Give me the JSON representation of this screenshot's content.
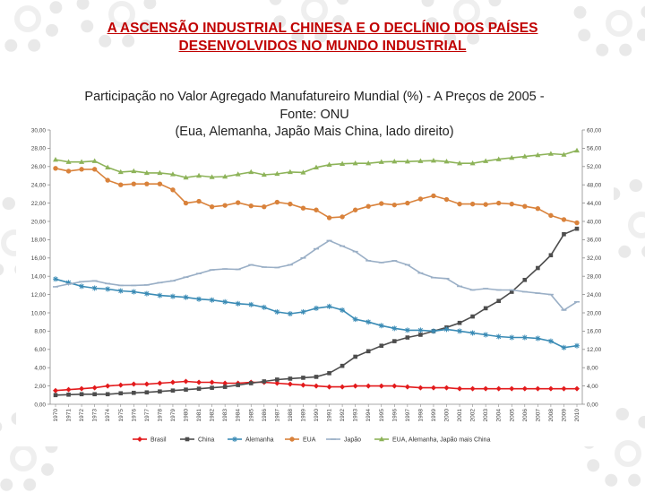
{
  "slide": {
    "title_line1": "A ASCENSÃO INDUSTRIAL CHINESA E O DECLÍNIO  DOS PAÍSES",
    "title_line2": "DESENVOLVIDOS NO MUNDO INDUSTRIAL "
  },
  "chart_data": {
    "type": "line",
    "title_lines": [
      "Participação no Valor Agregado Manufatureiro Mundial (%) -  A Preços de 2005 -",
      "Fonte: ONU",
      "(Eua, Alemanha, Japão Mais China, lado direito)"
    ],
    "x": [
      "1970",
      "1971",
      "1972",
      "1973",
      "1974",
      "1975",
      "1976",
      "1977",
      "1978",
      "1979",
      "1980",
      "1981",
      "1982",
      "1983",
      "1984",
      "1985",
      "1986",
      "1987",
      "1988",
      "1989",
      "1990",
      "1991",
      "1992",
      "1993",
      "1994",
      "1995",
      "1996",
      "1997",
      "1998",
      "1999",
      "2000",
      "2001",
      "2002",
      "2003",
      "2004",
      "2005",
      "2006",
      "2007",
      "2008",
      "2009",
      "2010"
    ],
    "y_left": {
      "ylim": [
        0,
        30
      ],
      "ticks": [
        "0,00",
        "2,00",
        "4,00",
        "6,00",
        "8,00",
        "10,00",
        "12,00",
        "14,00",
        "16,00",
        "18,00",
        "20,00",
        "22,00",
        "24,00",
        "26,00",
        "28,00",
        "30,00"
      ]
    },
    "y_right": {
      "ylim": [
        0,
        60
      ],
      "ticks": [
        "0,00",
        "4,00",
        "8,00",
        "12,00",
        "16,00",
        "20,00",
        "24,00",
        "28,00",
        "32,00",
        "36,00",
        "40,00",
        "44,00",
        "48,00",
        "52,00",
        "56,00",
        "60,00"
      ]
    },
    "grid": false,
    "legend_position": "bottom",
    "series": [
      {
        "name": "Brasil",
        "axis": "left",
        "color": "#e31a1c",
        "marker": "diamond",
        "values": [
          1.5,
          1.6,
          1.7,
          1.8,
          2.0,
          2.1,
          2.2,
          2.2,
          2.3,
          2.4,
          2.5,
          2.4,
          2.4,
          2.3,
          2.3,
          2.4,
          2.4,
          2.3,
          2.2,
          2.1,
          2.0,
          1.9,
          1.9,
          2.0,
          2.0,
          2.0,
          2.0,
          1.9,
          1.8,
          1.8,
          1.8,
          1.7,
          1.7,
          1.7,
          1.7,
          1.7,
          1.7,
          1.7,
          1.7,
          1.7,
          1.7
        ]
      },
      {
        "name": "China",
        "axis": "left",
        "color": "#4d4d4d",
        "marker": "square",
        "values": [
          1.0,
          1.05,
          1.1,
          1.1,
          1.1,
          1.2,
          1.25,
          1.3,
          1.4,
          1.5,
          1.6,
          1.7,
          1.8,
          1.9,
          2.1,
          2.3,
          2.5,
          2.7,
          2.8,
          2.9,
          3.0,
          3.4,
          4.2,
          5.2,
          5.8,
          6.4,
          6.9,
          7.3,
          7.6,
          8.0,
          8.4,
          8.9,
          9.6,
          10.5,
          11.3,
          12.3,
          13.6,
          14.9,
          16.3,
          18.6,
          19.2
        ]
      },
      {
        "name": "Alemanha",
        "axis": "left",
        "color": "#3a8bb5",
        "marker": "star",
        "values": [
          13.7,
          13.3,
          12.9,
          12.7,
          12.6,
          12.4,
          12.3,
          12.1,
          11.9,
          11.8,
          11.7,
          11.5,
          11.4,
          11.2,
          11.0,
          10.9,
          10.6,
          10.1,
          9.9,
          10.1,
          10.5,
          10.7,
          10.3,
          9.3,
          9.0,
          8.6,
          8.3,
          8.1,
          8.1,
          8.0,
          8.2,
          8.0,
          7.8,
          7.6,
          7.4,
          7.3,
          7.3,
          7.2,
          6.9,
          6.2,
          6.4
        ]
      },
      {
        "name": "EUA",
        "axis": "right",
        "color": "#d9823b",
        "marker": "circle",
        "values": [
          51.6,
          51.0,
          51.4,
          51.4,
          49.0,
          48.0,
          48.2,
          48.2,
          48.2,
          46.9,
          44.0,
          44.4,
          43.2,
          43.5,
          44.1,
          43.4,
          43.2,
          44.2,
          43.8,
          42.9,
          42.5,
          40.8,
          41.0,
          42.5,
          43.3,
          43.9,
          43.6,
          44.0,
          44.9,
          45.6,
          44.8,
          43.8,
          43.8,
          43.7,
          44.0,
          43.8,
          43.3,
          42.8,
          41.3,
          40.4,
          39.7
        ]
      },
      {
        "name": "Japão",
        "axis": "right",
        "color": "#9aafc6",
        "marker": "dash",
        "values": [
          25.7,
          26.3,
          26.8,
          27.0,
          26.4,
          26.0,
          26.0,
          26.1,
          26.6,
          27.0,
          27.8,
          28.6,
          29.4,
          29.6,
          29.5,
          30.5,
          30.0,
          29.9,
          30.5,
          32.0,
          34.0,
          35.8,
          34.6,
          33.4,
          31.4,
          31.0,
          31.4,
          30.5,
          28.7,
          27.7,
          27.5,
          25.8,
          25.0,
          25.3,
          25.0,
          25.0,
          24.6,
          24.3,
          24.0,
          20.6,
          22.4
        ]
      },
      {
        "name": "EUA, Alemanha, Japão mais China",
        "axis": "right",
        "color": "#8db359",
        "marker": "triangle",
        "values": [
          53.5,
          53.0,
          53.0,
          53.2,
          51.8,
          50.8,
          51.0,
          50.6,
          50.6,
          50.3,
          49.6,
          50.0,
          49.7,
          49.8,
          50.3,
          50.8,
          50.2,
          50.4,
          50.8,
          50.7,
          51.8,
          52.4,
          52.6,
          52.7,
          52.7,
          53.0,
          53.1,
          53.1,
          53.2,
          53.3,
          53.1,
          52.7,
          52.7,
          53.2,
          53.6,
          53.9,
          54.2,
          54.5,
          54.8,
          54.6,
          55.5
        ]
      }
    ]
  }
}
